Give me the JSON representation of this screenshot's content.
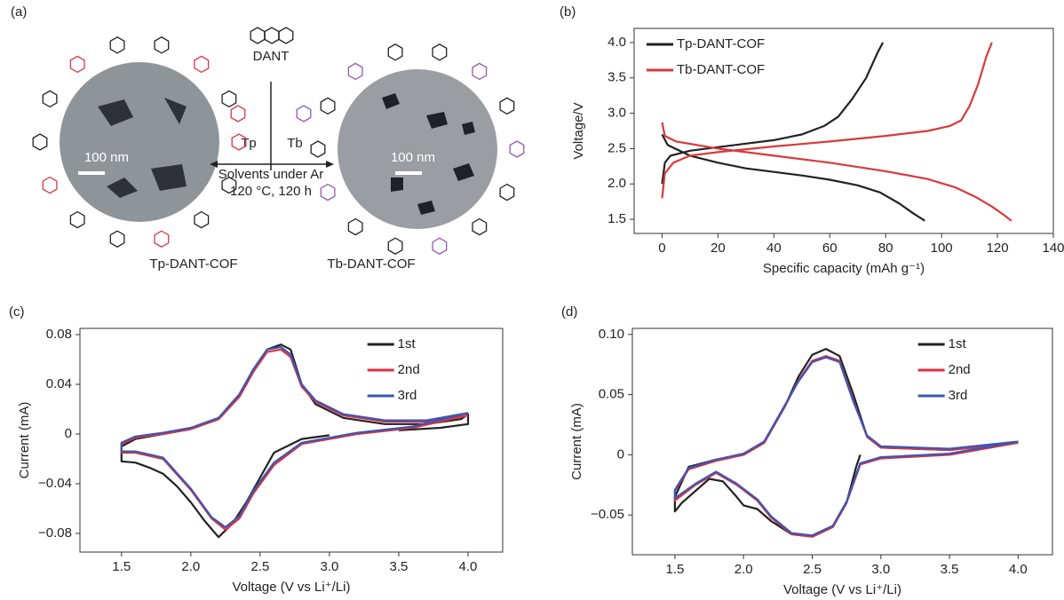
{
  "scheme": {
    "panel": "(a)",
    "monomer": "DANT",
    "left_aldehyde": "Tp",
    "right_aldehyde": "Tb",
    "condition_1": "Solvents under Ar",
    "condition_2": "120 °C, 120 h",
    "scale_left": "100 nm",
    "scale_right": "100 nm",
    "product_left": "Tp-DANT-COF",
    "product_right": "Tb-DANT-COF"
  },
  "chart_data": [
    {
      "type": "line",
      "panel": "(b)",
      "xlabel": "Specific capacity (mAh g⁻¹)",
      "ylabel": "Voltage/V",
      "xlim": [
        -10,
        140
      ],
      "ylim": [
        1.3,
        4.2
      ],
      "xticks": [
        0,
        20,
        40,
        60,
        80,
        100,
        120,
        140
      ],
      "yticks": [
        1.5,
        {
          "value": 2.0,
          "label": "2.0"
        },
        2.5,
        {
          "value": 3.0,
          "label": "3.0"
        },
        3.5,
        {
          "value": 4.0,
          "label": "4.0"
        }
      ],
      "legend": "upper left",
      "series": [
        {
          "name": "Tp-DANT-COF",
          "color": "#222222",
          "x": [
            0,
            1,
            3,
            10,
            20,
            30,
            40,
            50,
            58,
            63,
            68,
            73,
            77,
            79,
            null,
            0,
            2,
            10,
            20,
            30,
            40,
            50,
            60,
            70,
            78,
            85,
            90,
            94
          ],
          "values": [
            2.0,
            2.3,
            2.4,
            2.47,
            2.52,
            2.57,
            2.62,
            2.7,
            2.82,
            2.95,
            3.2,
            3.5,
            3.85,
            4.0,
            null,
            2.7,
            2.55,
            2.4,
            2.3,
            2.22,
            2.17,
            2.12,
            2.06,
            1.98,
            1.88,
            1.72,
            1.58,
            1.48
          ]
        },
        {
          "name": "Tb-DANT-COF",
          "color": "#d93a3a",
          "x": [
            0,
            1,
            4,
            10,
            20,
            40,
            60,
            80,
            95,
            103,
            107,
            110,
            113,
            116,
            118,
            null,
            0,
            1,
            5,
            20,
            40,
            60,
            80,
            95,
            105,
            112,
            118,
            122,
            125
          ],
          "values": [
            1.8,
            2.15,
            2.3,
            2.4,
            2.45,
            2.53,
            2.6,
            2.68,
            2.75,
            2.82,
            2.9,
            3.1,
            3.4,
            3.8,
            4.0,
            null,
            2.87,
            2.68,
            2.6,
            2.5,
            2.4,
            2.3,
            2.18,
            2.07,
            1.95,
            1.82,
            1.68,
            1.57,
            1.48
          ]
        }
      ]
    },
    {
      "type": "line",
      "panel": "(c)",
      "xlabel": "Voltage (V vs Li⁺/Li)",
      "ylabel": "Current (mA)",
      "xlim": [
        1.2,
        4.25
      ],
      "ylim": [
        -0.095,
        0.085
      ],
      "xticks": [
        1.5,
        {
          "value": 2.0,
          "label": "2.0"
        },
        2.5,
        {
          "value": 3.0,
          "label": "3.0"
        },
        3.5,
        {
          "value": 4.0,
          "label": "4.0"
        }
      ],
      "yticks": [
        -0.08,
        -0.04,
        0,
        0.04,
        0.08
      ],
      "ytick_labels": [
        "−0.08",
        "−0.04",
        "0",
        "0.04",
        "0.08"
      ],
      "legend": "upper right",
      "series": [
        {
          "name": "1st",
          "color": "#222222",
          "x": [
            3.0,
            2.8,
            2.6,
            2.5,
            2.4,
            2.3,
            2.2,
            2.1,
            2.0,
            1.9,
            1.8,
            1.7,
            1.6,
            1.5,
            1.5,
            1.6,
            1.8,
            2.0,
            2.2,
            2.35,
            2.45,
            2.55,
            2.65,
            2.72,
            2.8,
            2.9,
            3.1,
            3.4,
            3.7,
            3.95,
            4.0,
            4.0,
            3.8,
            3.5
          ],
          "values": [
            -0.001,
            -0.004,
            -0.015,
            -0.035,
            -0.055,
            -0.072,
            -0.083,
            -0.07,
            -0.055,
            -0.042,
            -0.032,
            -0.027,
            -0.023,
            -0.022,
            -0.01,
            -0.004,
            0.0,
            0.004,
            0.012,
            0.03,
            0.05,
            0.068,
            0.072,
            0.068,
            0.04,
            0.024,
            0.013,
            0.008,
            0.008,
            0.012,
            0.016,
            0.008,
            0.005,
            0.003
          ]
        },
        {
          "name": "2nd",
          "color": "#e0303f",
          "x": [
            4.0,
            3.6,
            3.2,
            2.8,
            2.6,
            2.45,
            2.35,
            2.25,
            2.15,
            2.0,
            1.8,
            1.6,
            1.5,
            1.5,
            1.6,
            1.8,
            2.0,
            2.2,
            2.35,
            2.45,
            2.55,
            2.65,
            2.72,
            2.8,
            2.9,
            3.1,
            3.4,
            3.7,
            4.0
          ],
          "values": [
            0.015,
            0.005,
            0.0,
            -0.008,
            -0.025,
            -0.048,
            -0.068,
            -0.077,
            -0.068,
            -0.045,
            -0.02,
            -0.015,
            -0.015,
            -0.008,
            -0.003,
            0.0,
            0.004,
            0.012,
            0.03,
            0.05,
            0.066,
            0.068,
            0.062,
            0.038,
            0.026,
            0.015,
            0.01,
            0.01,
            0.015
          ]
        },
        {
          "name": "3rd",
          "color": "#3a56b4",
          "x": [
            4.0,
            3.6,
            3.2,
            2.8,
            2.6,
            2.45,
            2.35,
            2.25,
            2.15,
            2.0,
            1.8,
            1.6,
            1.5,
            1.5,
            1.6,
            1.8,
            2.0,
            2.2,
            2.35,
            2.45,
            2.55,
            2.65,
            2.72,
            2.8,
            2.9,
            3.1,
            3.4,
            3.7,
            4.0
          ],
          "values": [
            0.017,
            0.006,
            0.001,
            -0.007,
            -0.023,
            -0.046,
            -0.066,
            -0.075,
            -0.067,
            -0.044,
            -0.019,
            -0.014,
            -0.014,
            -0.007,
            -0.002,
            0.001,
            0.005,
            0.013,
            0.032,
            0.052,
            0.068,
            0.07,
            0.064,
            0.04,
            0.027,
            0.016,
            0.011,
            0.011,
            0.017
          ]
        }
      ]
    },
    {
      "type": "line",
      "panel": "(d)",
      "xlabel": "Voltage (V vs Li⁺/Li)",
      "ylabel": "Current (mA)",
      "xlim": [
        1.19,
        4.25
      ],
      "ylim": [
        -0.083,
        0.105
      ],
      "xticks": [
        1.5,
        {
          "value": 2.0,
          "label": "2.0"
        },
        2.5,
        {
          "value": 3.0,
          "label": "3.0"
        },
        3.5,
        {
          "value": 4.0,
          "label": "4.0"
        }
      ],
      "yticks": [
        -0.05,
        0,
        0.05,
        0.1
      ],
      "ytick_labels": [
        "−0.05",
        "0",
        "0.05",
        "0.10"
      ],
      "legend": "upper right",
      "series": [
        {
          "name": "1st",
          "color": "#222222",
          "x": [
            2.85,
            2.82,
            2.75,
            2.65,
            2.5,
            2.35,
            2.2,
            2.1,
            2.0,
            1.95,
            1.85,
            1.75,
            1.65,
            1.55,
            1.5,
            1.5,
            1.6,
            1.8,
            2.0,
            2.15,
            2.3,
            2.4,
            2.5,
            2.6,
            2.7,
            2.8,
            2.9,
            3.0,
            3.5,
            4.0
          ],
          "values": [
            0.0,
            -0.01,
            -0.04,
            -0.06,
            -0.068,
            -0.066,
            -0.055,
            -0.045,
            -0.042,
            -0.035,
            -0.022,
            -0.02,
            -0.03,
            -0.04,
            -0.047,
            -0.035,
            -0.01,
            -0.004,
            0.0,
            0.01,
            0.04,
            0.065,
            0.083,
            0.088,
            0.082,
            0.05,
            0.015,
            0.006,
            0.004,
            0.01
          ]
        },
        {
          "name": "2nd",
          "color": "#e0303f",
          "x": [
            4.0,
            3.5,
            3.0,
            2.85,
            2.75,
            2.65,
            2.5,
            2.35,
            2.2,
            2.1,
            1.95,
            1.8,
            1.65,
            1.5,
            1.5,
            1.6,
            1.8,
            2.0,
            2.15,
            2.3,
            2.4,
            2.5,
            2.6,
            2.7,
            2.8,
            2.9,
            3.0,
            3.5,
            4.0
          ],
          "values": [
            0.01,
            0.0,
            -0.003,
            -0.008,
            -0.04,
            -0.06,
            -0.068,
            -0.066,
            -0.052,
            -0.038,
            -0.025,
            -0.015,
            -0.025,
            -0.038,
            -0.03,
            -0.012,
            -0.005,
            0.0,
            0.01,
            0.04,
            0.062,
            0.078,
            0.082,
            0.078,
            0.045,
            0.015,
            0.006,
            0.004,
            0.01
          ]
        },
        {
          "name": "3rd",
          "color": "#3a56b4",
          "x": [
            4.0,
            3.5,
            3.0,
            2.85,
            2.75,
            2.65,
            2.5,
            2.35,
            2.2,
            2.1,
            1.95,
            1.8,
            1.65,
            1.5,
            1.5,
            1.6,
            1.8,
            2.0,
            2.15,
            2.3,
            2.4,
            2.5,
            2.6,
            2.7,
            2.8,
            2.9,
            3.0,
            3.5,
            4.0
          ],
          "values": [
            0.011,
            0.001,
            -0.002,
            -0.007,
            -0.039,
            -0.059,
            -0.067,
            -0.065,
            -0.051,
            -0.037,
            -0.024,
            -0.014,
            -0.024,
            -0.036,
            -0.029,
            -0.011,
            -0.004,
            0.001,
            0.011,
            0.041,
            0.061,
            0.077,
            0.081,
            0.077,
            0.044,
            0.016,
            0.007,
            0.005,
            0.011
          ]
        }
      ]
    }
  ]
}
